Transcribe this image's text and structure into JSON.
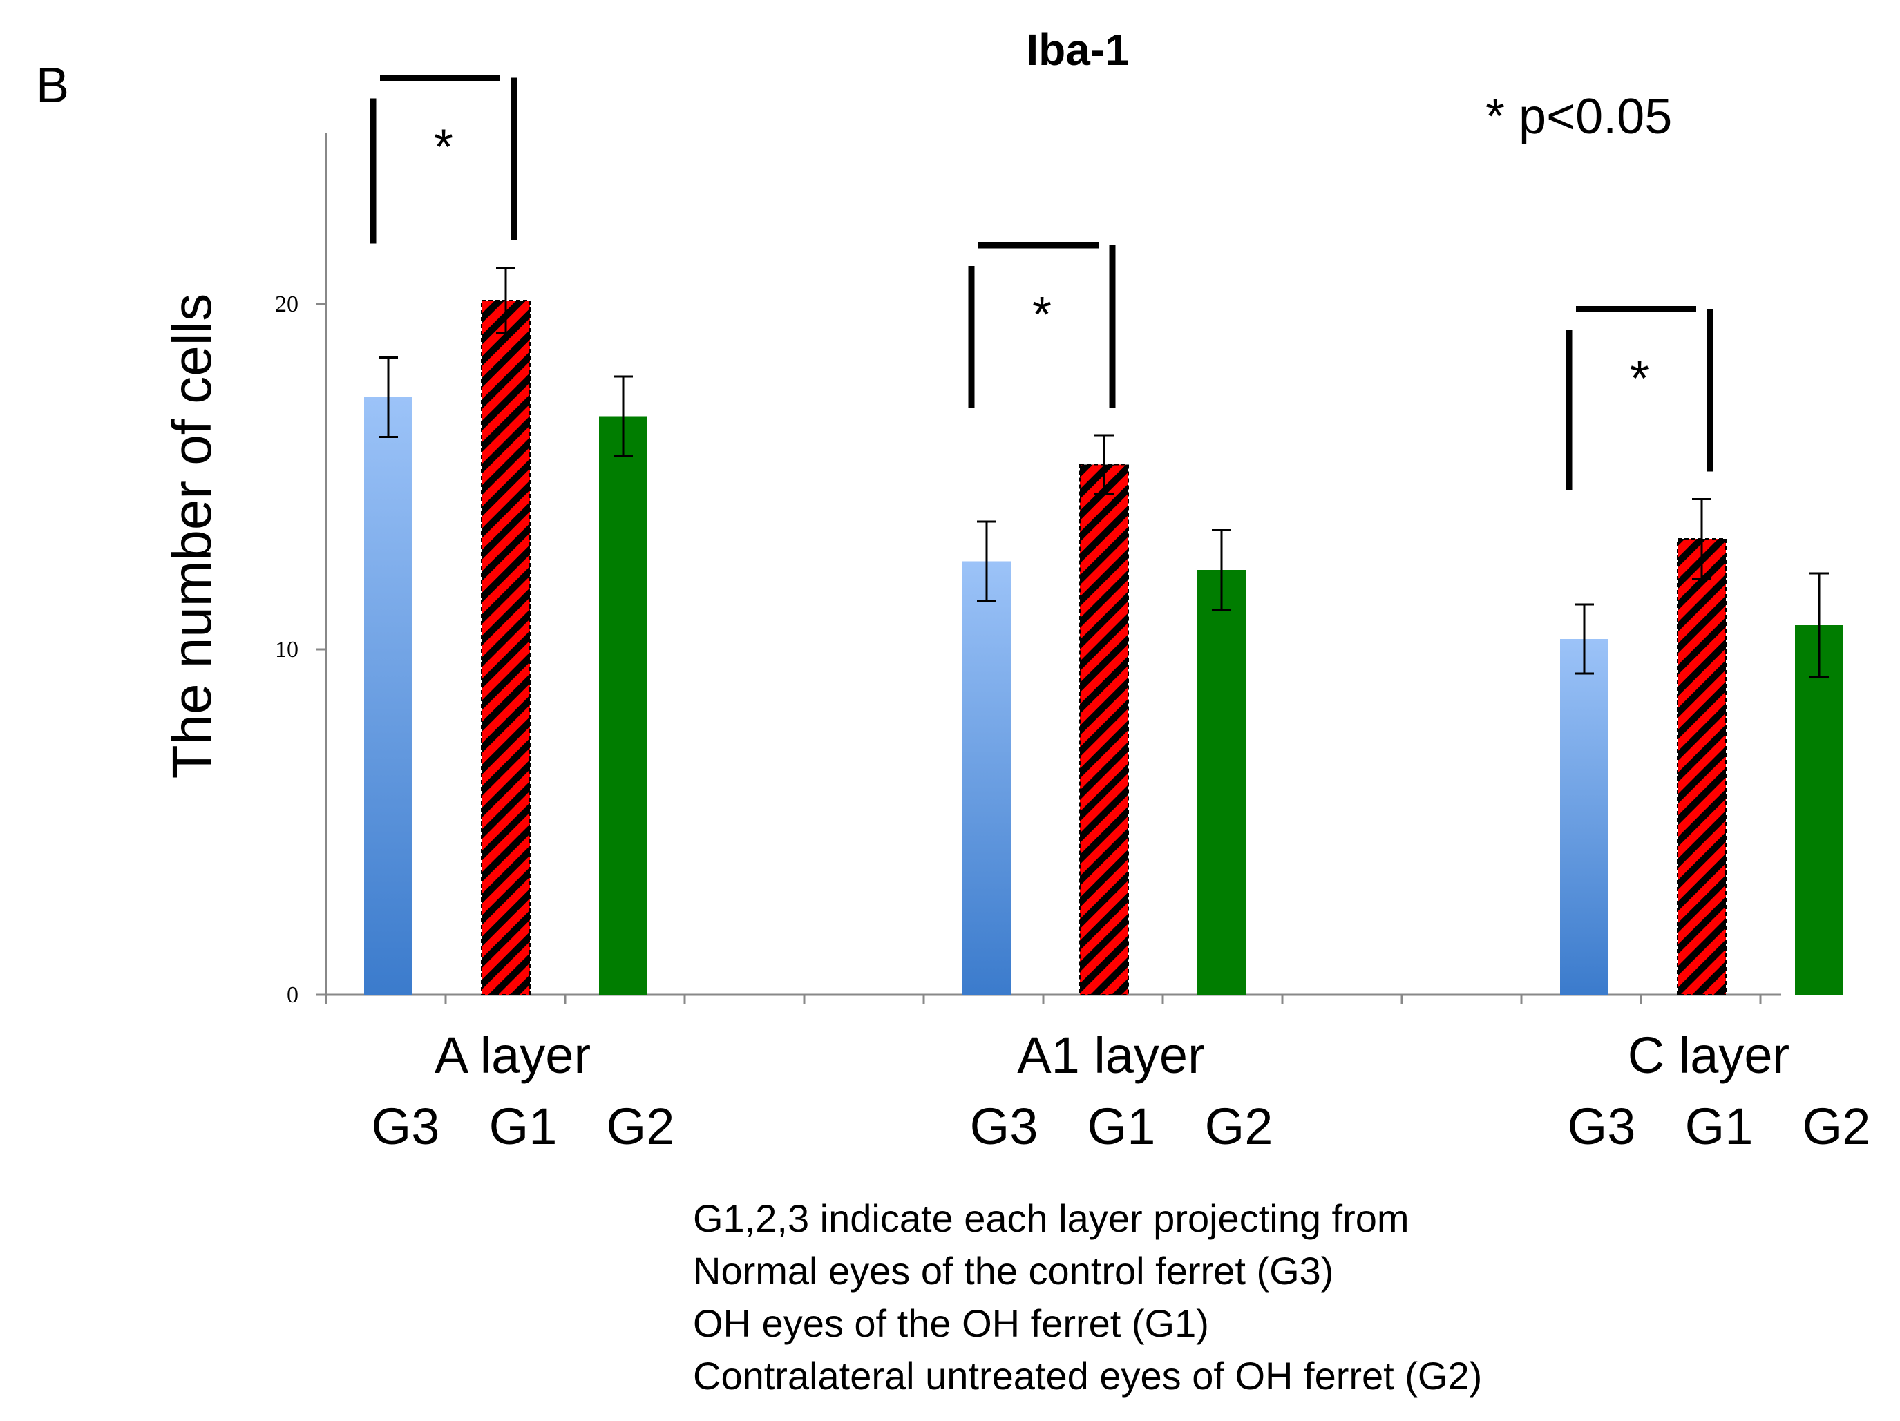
{
  "panel_label": "B",
  "chart_data": {
    "type": "bar",
    "title": "Iba-1",
    "ylabel": "The number of cells",
    "xlabel": "",
    "ylim": [
      0,
      25
    ],
    "yticks": [
      0,
      10,
      20
    ],
    "grid": false,
    "significance_note": "* p<0.05",
    "groups": [
      {
        "name": "A layer",
        "bars": [
          {
            "label": "G3",
            "value": 17.3,
            "error": 1.15
          },
          {
            "label": "G1",
            "value": 20.1,
            "error": 0.95
          },
          {
            "label": "G2",
            "value": 16.75,
            "error": 1.15
          }
        ],
        "significance": {
          "between": [
            "G3",
            "G1"
          ],
          "marker": "*"
        }
      },
      {
        "name": "A1 layer",
        "bars": [
          {
            "label": "G3",
            "value": 12.55,
            "error": 1.15
          },
          {
            "label": "G1",
            "value": 15.35,
            "error": 0.85
          },
          {
            "label": "G2",
            "value": 12.3,
            "error": 1.15
          }
        ],
        "significance": {
          "between": [
            "G3",
            "G1"
          ],
          "marker": "*"
        }
      },
      {
        "name": "C layer",
        "bars": [
          {
            "label": "G3",
            "value": 10.3,
            "error": 1.0
          },
          {
            "label": "G1",
            "value": 13.2,
            "error": 1.15
          },
          {
            "label": "G2",
            "value": 10.7,
            "error": 1.5
          }
        ],
        "significance": {
          "between": [
            "G3",
            "G1"
          ],
          "marker": "*"
        }
      }
    ],
    "series_styles": {
      "G3": {
        "fill_top": "#9cc3f8",
        "fill_bottom": "#3b7bcc",
        "pattern": "gradient"
      },
      "G1": {
        "fill": "#ff0000",
        "hatch": "#000000",
        "pattern": "diagonal-hatch"
      },
      "G2": {
        "fill": "#007d00",
        "pattern": "solid"
      }
    }
  },
  "footnote": [
    "G1,2,3 indicate each layer projecting from",
    "Normal eyes of the control ferret (G3)",
    "OH eyes of the OH ferret (G1)",
    "Contralateral untreated eyes of OH ferret (G2)"
  ]
}
